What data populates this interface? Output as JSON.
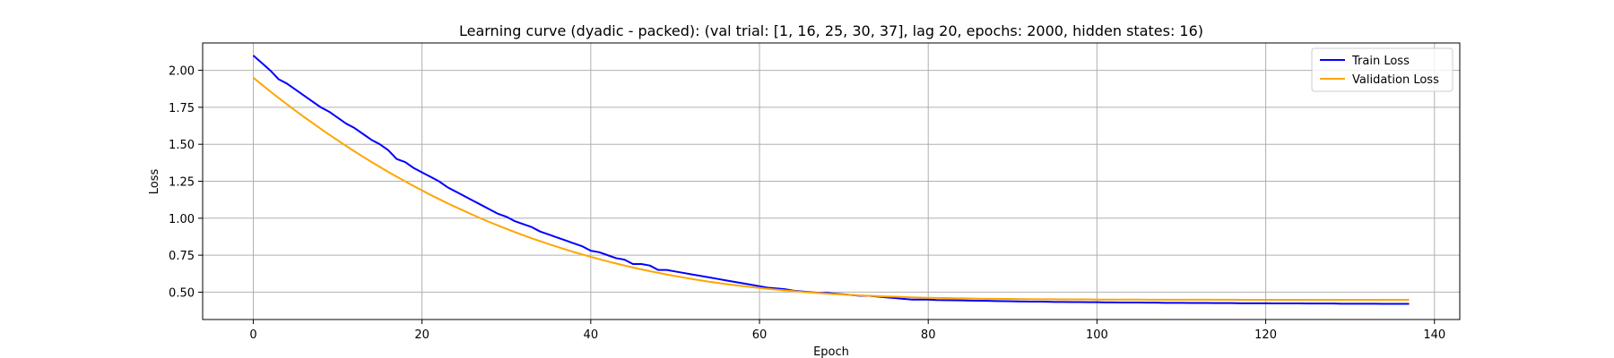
{
  "chart_data": {
    "type": "line",
    "title": "Learning curve (dyadic - packed): (val trial: [1, 16, 25, 30, 37], lag 20, epochs: 2000, hidden states: 16)",
    "xlabel": "Epoch",
    "ylabel": "Loss",
    "xlim": [
      -6,
      143
    ],
    "ylim": [
      0.315,
      2.185
    ],
    "xticks": [
      0,
      20,
      40,
      60,
      80,
      100,
      120,
      140
    ],
    "yticks": [
      0.5,
      0.75,
      1.0,
      1.25,
      1.5,
      1.75,
      2.0
    ],
    "xtick_labels": [
      "0",
      "20",
      "40",
      "60",
      "80",
      "100",
      "120",
      "140"
    ],
    "ytick_labels": [
      "0.50",
      "0.75",
      "1.00",
      "1.25",
      "1.50",
      "1.75",
      "2.00"
    ],
    "grid": true,
    "legend_position": "top-right",
    "series": [
      {
        "name": "Train Loss",
        "color": "#0000ff",
        "points": [
          [
            0,
            2.1
          ],
          [
            1,
            2.05
          ],
          [
            2,
            2.0
          ],
          [
            3,
            1.94
          ],
          [
            4,
            1.91
          ],
          [
            5,
            1.87
          ],
          [
            6,
            1.83
          ],
          [
            7,
            1.79
          ],
          [
            8,
            1.75
          ],
          [
            9,
            1.72
          ],
          [
            10,
            1.68
          ],
          [
            11,
            1.64
          ],
          [
            12,
            1.61
          ],
          [
            13,
            1.57
          ],
          [
            14,
            1.53
          ],
          [
            15,
            1.5
          ],
          [
            16,
            1.46
          ],
          [
            17,
            1.4
          ],
          [
            18,
            1.38
          ],
          [
            19,
            1.34
          ],
          [
            20,
            1.31
          ],
          [
            21,
            1.28
          ],
          [
            22,
            1.25
          ],
          [
            23,
            1.21
          ],
          [
            24,
            1.18
          ],
          [
            25,
            1.15
          ],
          [
            26,
            1.12
          ],
          [
            27,
            1.09
          ],
          [
            28,
            1.06
          ],
          [
            29,
            1.03
          ],
          [
            30,
            1.01
          ],
          [
            31,
            0.98
          ],
          [
            32,
            0.96
          ],
          [
            33,
            0.94
          ],
          [
            34,
            0.91
          ],
          [
            35,
            0.89
          ],
          [
            36,
            0.87
          ],
          [
            37,
            0.85
          ],
          [
            38,
            0.83
          ],
          [
            39,
            0.81
          ],
          [
            40,
            0.78
          ],
          [
            41,
            0.77
          ],
          [
            42,
            0.75
          ],
          [
            43,
            0.73
          ],
          [
            44,
            0.72
          ],
          [
            45,
            0.69
          ],
          [
            46,
            0.69
          ],
          [
            47,
            0.68
          ],
          [
            48,
            0.65
          ],
          [
            49,
            0.65
          ],
          [
            50,
            0.64
          ],
          [
            51,
            0.63
          ],
          [
            52,
            0.62
          ],
          [
            53,
            0.61
          ],
          [
            54,
            0.6
          ],
          [
            55,
            0.59
          ],
          [
            56,
            0.58
          ],
          [
            57,
            0.57
          ],
          [
            58,
            0.56
          ],
          [
            59,
            0.55
          ],
          [
            60,
            0.54
          ],
          [
            61,
            0.53
          ],
          [
            62,
            0.525
          ],
          [
            63,
            0.52
          ],
          [
            64,
            0.51
          ],
          [
            65,
            0.505
          ],
          [
            66,
            0.5
          ],
          [
            67,
            0.495
          ],
          [
            68,
            0.495
          ],
          [
            69,
            0.49
          ],
          [
            70,
            0.485
          ],
          [
            71,
            0.48
          ],
          [
            72,
            0.475
          ],
          [
            73,
            0.475
          ],
          [
            74,
            0.47
          ],
          [
            75,
            0.465
          ],
          [
            76,
            0.46
          ],
          [
            77,
            0.455
          ],
          [
            78,
            0.45
          ],
          [
            79,
            0.45
          ],
          [
            80,
            0.45
          ],
          [
            81,
            0.447
          ],
          [
            82,
            0.446
          ],
          [
            83,
            0.445
          ],
          [
            84,
            0.444
          ],
          [
            85,
            0.443
          ],
          [
            86,
            0.442
          ],
          [
            87,
            0.441
          ],
          [
            88,
            0.44
          ],
          [
            89,
            0.439
          ],
          [
            90,
            0.438
          ],
          [
            91,
            0.437
          ],
          [
            92,
            0.436
          ],
          [
            93,
            0.436
          ],
          [
            94,
            0.435
          ],
          [
            95,
            0.434
          ],
          [
            96,
            0.434
          ],
          [
            97,
            0.433
          ],
          [
            98,
            0.433
          ],
          [
            99,
            0.432
          ],
          [
            100,
            0.432
          ],
          [
            101,
            0.431
          ],
          [
            102,
            0.431
          ],
          [
            103,
            0.43
          ],
          [
            104,
            0.43
          ],
          [
            105,
            0.43
          ],
          [
            106,
            0.429
          ],
          [
            107,
            0.429
          ],
          [
            108,
            0.428
          ],
          [
            109,
            0.428
          ],
          [
            110,
            0.428
          ],
          [
            111,
            0.427
          ],
          [
            112,
            0.427
          ],
          [
            113,
            0.427
          ],
          [
            114,
            0.426
          ],
          [
            115,
            0.426
          ],
          [
            116,
            0.426
          ],
          [
            117,
            0.425
          ],
          [
            118,
            0.425
          ],
          [
            119,
            0.425
          ],
          [
            120,
            0.425
          ],
          [
            121,
            0.424
          ],
          [
            122,
            0.424
          ],
          [
            123,
            0.424
          ],
          [
            124,
            0.424
          ],
          [
            125,
            0.423
          ],
          [
            126,
            0.423
          ],
          [
            127,
            0.423
          ],
          [
            128,
            0.423
          ],
          [
            129,
            0.422
          ],
          [
            130,
            0.422
          ],
          [
            131,
            0.422
          ],
          [
            132,
            0.422
          ],
          [
            133,
            0.422
          ],
          [
            134,
            0.421
          ],
          [
            135,
            0.421
          ],
          [
            136,
            0.421
          ],
          [
            137,
            0.421
          ]
        ]
      },
      {
        "name": "Validation Loss",
        "color": "#ffa500",
        "points": [
          [
            0,
            1.95
          ],
          [
            1,
            1.904
          ],
          [
            2,
            1.858
          ],
          [
            3,
            1.813
          ],
          [
            4,
            1.77
          ],
          [
            5,
            1.727
          ],
          [
            6,
            1.685
          ],
          [
            7,
            1.645
          ],
          [
            8,
            1.604
          ],
          [
            9,
            1.565
          ],
          [
            10,
            1.527
          ],
          [
            11,
            1.489
          ],
          [
            12,
            1.452
          ],
          [
            13,
            1.416
          ],
          [
            14,
            1.381
          ],
          [
            15,
            1.347
          ],
          [
            16,
            1.313
          ],
          [
            17,
            1.281
          ],
          [
            18,
            1.249
          ],
          [
            19,
            1.218
          ],
          [
            20,
            1.188
          ],
          [
            21,
            1.158
          ],
          [
            22,
            1.13
          ],
          [
            23,
            1.102
          ],
          [
            24,
            1.075
          ],
          [
            25,
            1.049
          ],
          [
            26,
            1.023
          ],
          [
            27,
            0.998
          ],
          [
            28,
            0.974
          ],
          [
            29,
            0.951
          ],
          [
            30,
            0.928
          ],
          [
            31,
            0.906
          ],
          [
            32,
            0.885
          ],
          [
            33,
            0.864
          ],
          [
            34,
            0.845
          ],
          [
            35,
            0.825
          ],
          [
            36,
            0.807
          ],
          [
            37,
            0.789
          ],
          [
            38,
            0.771
          ],
          [
            39,
            0.755
          ],
          [
            40,
            0.739
          ],
          [
            41,
            0.723
          ],
          [
            42,
            0.708
          ],
          [
            43,
            0.694
          ],
          [
            44,
            0.68
          ],
          [
            45,
            0.667
          ],
          [
            46,
            0.654
          ],
          [
            47,
            0.642
          ],
          [
            48,
            0.631
          ],
          [
            49,
            0.619
          ],
          [
            50,
            0.609
          ],
          [
            51,
            0.599
          ],
          [
            52,
            0.589
          ],
          [
            53,
            0.58
          ],
          [
            54,
            0.571
          ],
          [
            55,
            0.563
          ],
          [
            56,
            0.555
          ],
          [
            57,
            0.548
          ],
          [
            58,
            0.541
          ],
          [
            59,
            0.534
          ],
          [
            60,
            0.528
          ],
          [
            61,
            0.522
          ],
          [
            62,
            0.517
          ],
          [
            63,
            0.512
          ],
          [
            64,
            0.507
          ],
          [
            65,
            0.502
          ],
          [
            66,
            0.498
          ],
          [
            67,
            0.494
          ],
          [
            68,
            0.49
          ],
          [
            69,
            0.487
          ],
          [
            70,
            0.484
          ],
          [
            71,
            0.481
          ],
          [
            72,
            0.478
          ],
          [
            73,
            0.475
          ],
          [
            74,
            0.473
          ],
          [
            75,
            0.471
          ],
          [
            76,
            0.469
          ],
          [
            77,
            0.467
          ],
          [
            78,
            0.465
          ],
          [
            79,
            0.463
          ],
          [
            80,
            0.462
          ],
          [
            81,
            0.461
          ],
          [
            82,
            0.46
          ],
          [
            83,
            0.459
          ],
          [
            84,
            0.458
          ],
          [
            85,
            0.457
          ],
          [
            86,
            0.456
          ],
          [
            87,
            0.455
          ],
          [
            88,
            0.455
          ],
          [
            89,
            0.454
          ],
          [
            90,
            0.454
          ],
          [
            91,
            0.453
          ],
          [
            92,
            0.453
          ],
          [
            93,
            0.452
          ],
          [
            94,
            0.452
          ],
          [
            95,
            0.452
          ],
          [
            96,
            0.451
          ],
          [
            97,
            0.451
          ],
          [
            98,
            0.451
          ],
          [
            99,
            0.451
          ],
          [
            100,
            0.45
          ],
          [
            101,
            0.45
          ],
          [
            102,
            0.45
          ],
          [
            103,
            0.45
          ],
          [
            104,
            0.45
          ],
          [
            105,
            0.45
          ],
          [
            106,
            0.449
          ],
          [
            107,
            0.449
          ],
          [
            108,
            0.449
          ],
          [
            109,
            0.449
          ],
          [
            110,
            0.449
          ],
          [
            111,
            0.449
          ],
          [
            112,
            0.449
          ],
          [
            113,
            0.449
          ],
          [
            114,
            0.449
          ],
          [
            115,
            0.449
          ],
          [
            116,
            0.449
          ],
          [
            117,
            0.448
          ],
          [
            118,
            0.448
          ],
          [
            119,
            0.448
          ],
          [
            120,
            0.448
          ],
          [
            121,
            0.448
          ],
          [
            122,
            0.448
          ],
          [
            123,
            0.448
          ],
          [
            124,
            0.448
          ],
          [
            125,
            0.448
          ],
          [
            126,
            0.448
          ],
          [
            127,
            0.448
          ],
          [
            128,
            0.448
          ],
          [
            129,
            0.448
          ],
          [
            130,
            0.448
          ],
          [
            131,
            0.448
          ],
          [
            132,
            0.448
          ],
          [
            133,
            0.448
          ],
          [
            134,
            0.448
          ],
          [
            135,
            0.448
          ],
          [
            136,
            0.448
          ],
          [
            137,
            0.448
          ]
        ]
      }
    ]
  }
}
